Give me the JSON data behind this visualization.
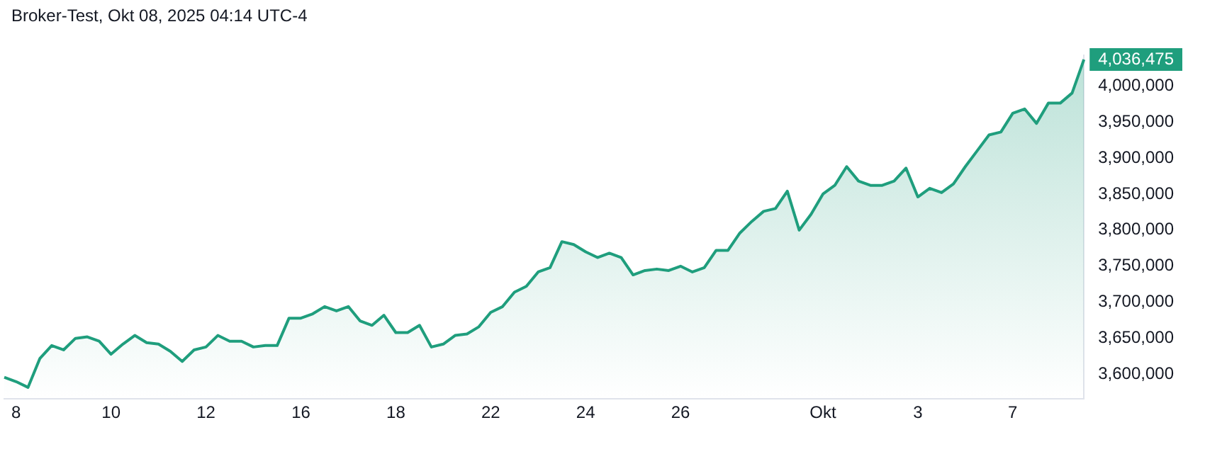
{
  "chart_data": {
    "type": "area",
    "title": "Broker-Test, Okt 08, 2025 04:14 UTC-4",
    "categories": [
      null,
      "8",
      null,
      null,
      null,
      null,
      null,
      null,
      null,
      "10",
      null,
      null,
      null,
      null,
      null,
      null,
      null,
      "12",
      null,
      null,
      null,
      null,
      null,
      null,
      null,
      "16",
      null,
      null,
      null,
      null,
      null,
      null,
      null,
      "18",
      null,
      null,
      null,
      null,
      null,
      null,
      null,
      "22",
      null,
      null,
      null,
      null,
      null,
      null,
      null,
      "24",
      null,
      null,
      null,
      null,
      null,
      null,
      null,
      "26",
      null,
      null,
      null,
      null,
      null,
      null,
      null,
      null,
      null,
      null,
      null,
      "Okt",
      null,
      null,
      null,
      null,
      null,
      null,
      null,
      "3",
      null,
      null,
      null,
      null,
      null,
      null,
      null,
      "7",
      null,
      null,
      null,
      null,
      null,
      null
    ],
    "series": [
      {
        "color": "#1f9e7d",
        "values": [
          3596000,
          3590000,
          3582000,
          3622000,
          3640000,
          3634000,
          3650000,
          3652000,
          3646000,
          3628000,
          3642000,
          3654000,
          3644000,
          3642000,
          3632000,
          3618000,
          3634000,
          3638000,
          3654000,
          3646000,
          3646000,
          3638000,
          3640000,
          3640000,
          3678000,
          3678000,
          3684000,
          3694000,
          3688000,
          3694000,
          3674000,
          3668000,
          3682000,
          3658000,
          3658000,
          3668000,
          3638000,
          3642000,
          3654000,
          3656000,
          3666000,
          3686000,
          3694000,
          3714000,
          3722000,
          3742000,
          3748000,
          3784000,
          3780000,
          3770000,
          3762000,
          3768000,
          3762000,
          3738000,
          3744000,
          3746000,
          3744000,
          3750000,
          3742000,
          3748000,
          3772000,
          3772000,
          3796000,
          3812000,
          3826000,
          3830000,
          3854000,
          3800000,
          3822000,
          3850000,
          3862000,
          3888000,
          3868000,
          3862000,
          3862000,
          3868000,
          3886000,
          3846000,
          3858000,
          3852000,
          3864000,
          3888000,
          3910000,
          3932000,
          3936000,
          3962000,
          3968000,
          3948000,
          3976000,
          3976000,
          3990000,
          4036475
        ],
        "value_labels": [
          null,
          null,
          null,
          null,
          null,
          null,
          null,
          null,
          null,
          null,
          null,
          null,
          null,
          null,
          null,
          null,
          null,
          null,
          null,
          null,
          null,
          null,
          null,
          null,
          null,
          null,
          null,
          null,
          null,
          null,
          null,
          null,
          null,
          null,
          null,
          null,
          null,
          null,
          null,
          null,
          null,
          null,
          null,
          null,
          null,
          null,
          null,
          null,
          null,
          null,
          null,
          null,
          null,
          null,
          null,
          null,
          null,
          null,
          null,
          null,
          null,
          null,
          null,
          null,
          null,
          null,
          null,
          null,
          null,
          null,
          null,
          null,
          null,
          null,
          null,
          null,
          null,
          null,
          null,
          null,
          null,
          null,
          null,
          null,
          null,
          null,
          null,
          null,
          null,
          null,
          null,
          "4,036,475"
        ]
      }
    ],
    "ylim": [
      3566000,
      4042000
    ],
    "yticks": [
      {
        "value": 3600000,
        "label": "3,600,000"
      },
      {
        "value": 3650000,
        "label": "3,650,000"
      },
      {
        "value": 3700000,
        "label": "3,700,000"
      },
      {
        "value": 3750000,
        "label": "3,750,000"
      },
      {
        "value": 3800000,
        "label": "3,800,000"
      },
      {
        "value": 3850000,
        "label": "3,850,000"
      },
      {
        "value": 3900000,
        "label": "3,900,000"
      },
      {
        "value": 3950000,
        "label": "3,950,000"
      },
      {
        "value": 4000000,
        "label": "4,000,000"
      }
    ],
    "grid": false,
    "legend": false
  }
}
